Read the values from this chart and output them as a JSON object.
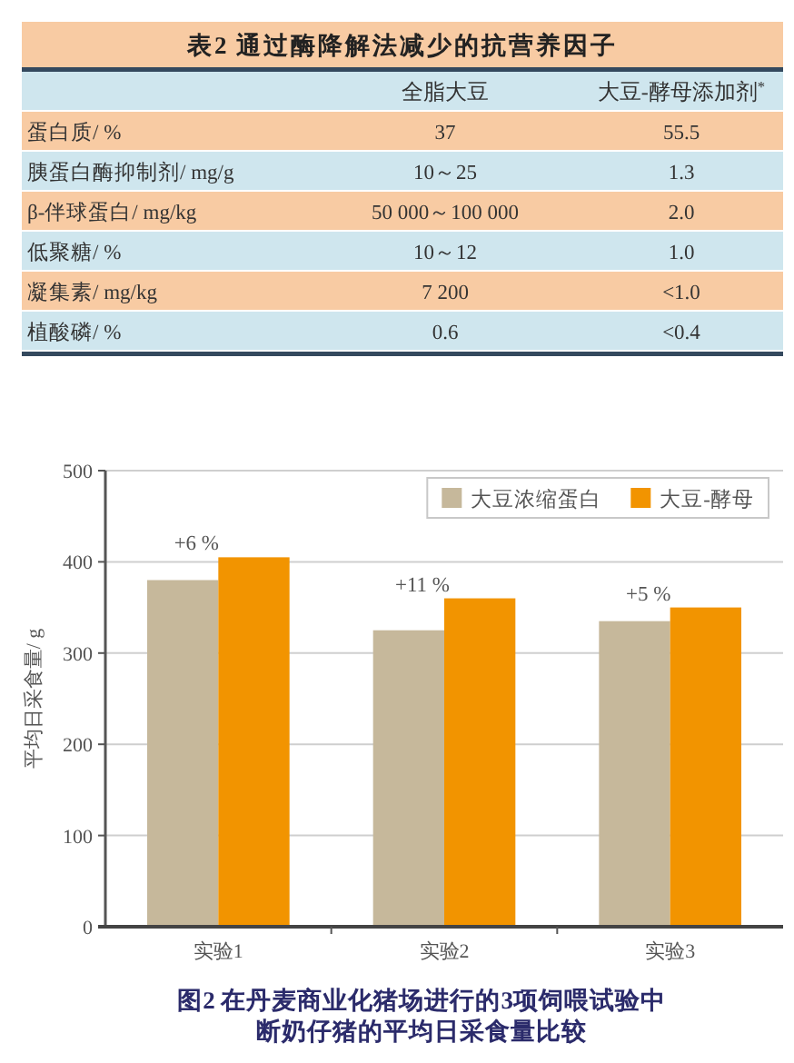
{
  "chart_data": [
    {
      "type": "other",
      "title": "表2 通过酶降解法减少的抗营养因子",
      "categories": [
        "全脂大豆",
        "大豆-酵母添加剂$^{*}$"
      ],
      "y_categories": [
        "蛋白质/ %",
        "胰蛋白酶抑制剂/ mg/g",
        "β-伴球蛋白/ mg/kg",
        "低聚糖/ %",
        "凝集素/ mg/kg",
        "植酸磷/ %"
      ],
      "cell_labels": [
        [
          "37",
          "55.5"
        ],
        [
          "10～25",
          "1.3"
        ],
        [
          "50 000～100 000",
          "2.0"
        ],
        [
          "10～12",
          "1.0"
        ],
        [
          "7 200",
          "<1.0"
        ],
        [
          "0.6",
          "<0.4"
        ]
      ]
    },
    {
      "type": "bar",
      "title": "图2 在丹麦商业化猪场进行的3项饲喂试验中断奶仔猪的平均日采食量比较",
      "categories": [
        "实验1",
        "实验2",
        "实验3"
      ],
      "series": [
        {
          "name": "大豆浓缩蛋白",
          "color": "#c6b89b",
          "values": [
            380,
            325,
            335
          ]
        },
        {
          "name": "大豆-酵母",
          "color": "#f29400",
          "values": [
            405,
            360,
            350
          ]
        }
      ],
      "ylabel": "平均日采食量/ g",
      "ylim": [
        0,
        500
      ],
      "yticks": [
        0,
        100,
        200,
        300,
        400,
        500
      ],
      "grid": "y",
      "legend": "top right",
      "annotations": [
        {
          "text": "+6 %",
          "x": "实验1",
          "y": 405
        },
        {
          "text": "+11 %",
          "x": "实验2",
          "y": 360
        },
        {
          "text": "+5 %",
          "x": "实验3",
          "y": 350
        }
      ]
    }
  ]
}
